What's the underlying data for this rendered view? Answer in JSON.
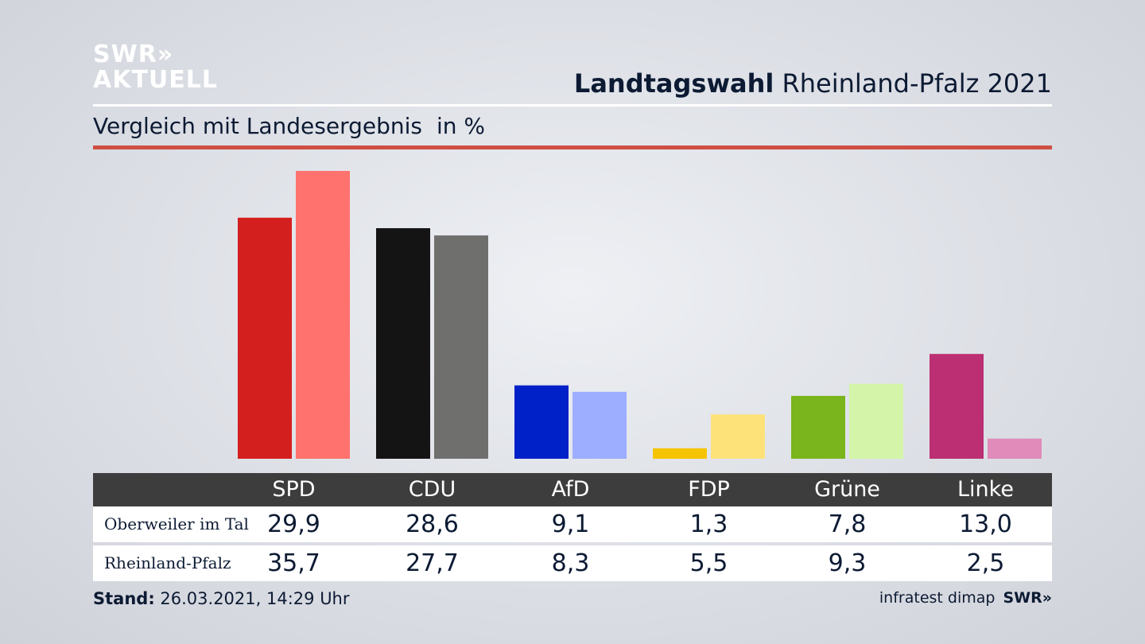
{
  "logo": {
    "line1": "SWR»",
    "line2": "AKTUELL"
  },
  "header": {
    "title_bold": "Landtagswahl",
    "title_rest": "Rheinland-Pfalz 2021",
    "subtitle": "Vergleich mit Landesergebnis",
    "unit": "in %"
  },
  "colors": {
    "accent_rule": "#cf4f43",
    "table_header_bg": "#3d3d3d"
  },
  "chart_data": {
    "type": "bar",
    "categories": [
      "SPD",
      "CDU",
      "AfD",
      "FDP",
      "Grüne",
      "Linke"
    ],
    "series": [
      {
        "name": "Oberweiler im Tal",
        "values": [
          29.9,
          28.6,
          9.1,
          1.3,
          7.8,
          13.0
        ],
        "colors": [
          "#d41f1f",
          "#141414",
          "#0020c8",
          "#f5c400",
          "#7ab51d",
          "#bc2f72"
        ]
      },
      {
        "name": "Rheinland-Pfalz",
        "values": [
          35.7,
          27.7,
          8.3,
          5.5,
          9.3,
          2.5
        ],
        "colors": [
          "#ff726d",
          "#6f6f6e",
          "#9dadff",
          "#fde27a",
          "#d4f5a9",
          "#e08bb9"
        ]
      }
    ],
    "ylim": [
      0,
      36
    ]
  },
  "table": {
    "rows": [
      {
        "label": "Oberweiler im Tal",
        "values": [
          "29,9",
          "28,6",
          "9,1",
          "1,3",
          "7,8",
          "13,0"
        ]
      },
      {
        "label": "Rheinland-Pfalz",
        "values": [
          "35,7",
          "27,7",
          "8,3",
          "5,5",
          "9,3",
          "2,5"
        ]
      }
    ]
  },
  "footer": {
    "stand_label": "Stand:",
    "stand_value": "26.03.2021, 14:29 Uhr",
    "source": "infratest dimap",
    "source_brand": "SWR»"
  }
}
